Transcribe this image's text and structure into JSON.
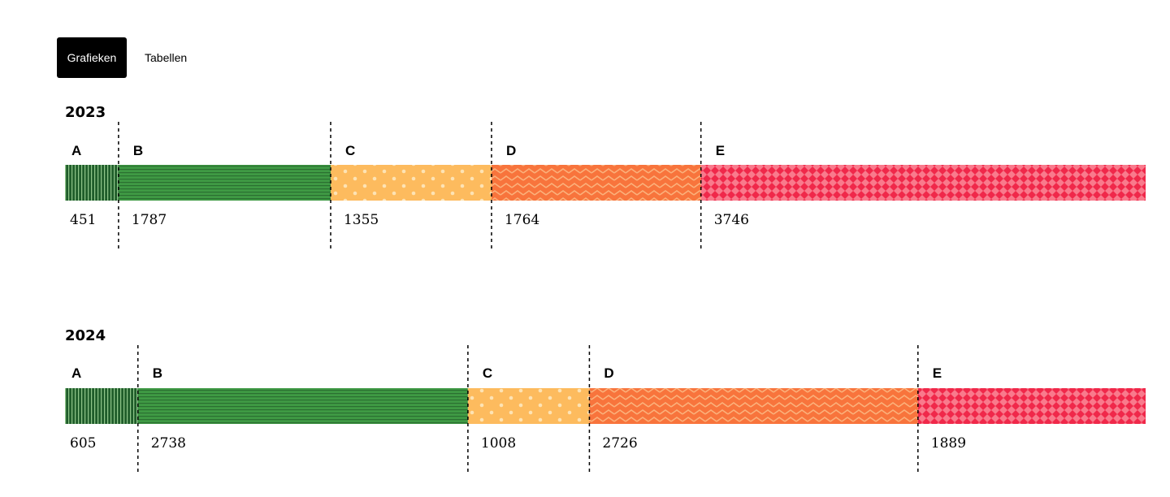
{
  "tabs": [
    {
      "label": "Grafieken",
      "active": true
    },
    {
      "label": "Tabellen",
      "active": false
    }
  ],
  "colors": {
    "A": "#1f5d2a",
    "B": "#3f9a44",
    "C": "#fdbb5e",
    "D": "#f8743c",
    "E": "#f0284a"
  },
  "chart_data": [
    {
      "type": "bar",
      "orientation": "stacked-horizontal",
      "title": "2023",
      "categories": [
        "A",
        "B",
        "C",
        "D",
        "E"
      ],
      "values": [
        451,
        1787,
        1355,
        1764,
        3746
      ]
    },
    {
      "type": "bar",
      "orientation": "stacked-horizontal",
      "title": "2024",
      "categories": [
        "A",
        "B",
        "C",
        "D",
        "E"
      ],
      "values": [
        605,
        2738,
        1008,
        2726,
        1889
      ]
    }
  ]
}
